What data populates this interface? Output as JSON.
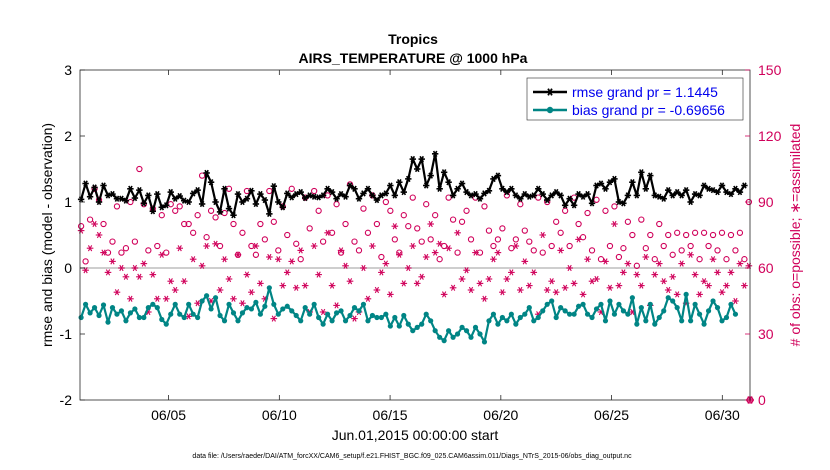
{
  "chart_data": {
    "type": "line",
    "title": "Tropics",
    "subtitle": "AIRS_TEMPERATURE @ 1000 hPa",
    "xlabel": "Jun.01,2015 00:00:00 start",
    "ylabel": "rmse and bias (model - observation)",
    "y2label": "# of obs: o=possible; ∗=assimilated",
    "x_ticks": [
      {
        "day": 5,
        "label": "06/05"
      },
      {
        "day": 10,
        "label": "06/10"
      },
      {
        "day": 15,
        "label": "06/15"
      },
      {
        "day": 20,
        "label": "06/20"
      },
      {
        "day": 25,
        "label": "06/25"
      },
      {
        "day": 30,
        "label": "06/30"
      }
    ],
    "xlim": [
      1,
      31.25
    ],
    "ylim": [
      -2,
      3
    ],
    "y_ticks": [
      "-2",
      "-1",
      "0",
      "1",
      "2",
      "3"
    ],
    "y2lim": [
      0,
      150
    ],
    "y2_ticks": [
      "0",
      "30",
      "60",
      "90",
      "120",
      "150"
    ],
    "footnote": "data file: /Users/raeder/DAI/ATM_forcXX/CAM6_setup/f.e21.FHIST_BGC.f09_025.CAM6assim.011/Diags_NTrS_2015-06/obs_diag_output.nc",
    "legend_position": "top-right",
    "series": [
      {
        "name": "rmse grand pr = 1.1445",
        "axis": "left",
        "color": "#000000",
        "marker": "asterisk",
        "values": [
          1.04,
          1.28,
          1.08,
          1.22,
          1.0,
          1.25,
          1.1,
          1.12,
          1.05,
          1.05,
          1.02,
          1.2,
          1.06,
          1.18,
          0.98,
          1.1,
          0.86,
          1.12,
          0.92,
          0.95,
          1.15,
          1.05,
          1.09,
          1.02,
          1.0,
          1.13,
          1.18,
          0.97,
          1.44,
          1.3,
          1.0,
          0.85,
          1.2,
          0.9,
          0.8,
          1.12,
          1.0,
          1.05,
          1.17,
          0.97,
          1.12,
          1.03,
          0.82,
          1.24,
          1.0,
          0.92,
          1.13,
          1.07,
          1.12,
          1.15,
          1.06,
          1.1,
          1.08,
          1.07,
          1.1,
          1.2,
          1.15,
          1.05,
          1.12,
          1.08,
          1.25,
          1.2,
          1.05,
          1.13,
          1.2,
          1.1,
          1.03,
          1.1,
          1.13,
          1.25,
          1.1,
          1.3,
          1.15,
          1.35,
          1.65,
          1.5,
          1.65,
          1.25,
          1.4,
          1.73,
          1.2,
          1.45,
          1.3,
          1.1,
          1.2,
          1.28,
          1.15,
          1.1,
          1.12,
          1.05,
          1.13,
          1.17,
          1.35,
          1.4,
          1.2,
          1.15,
          1.2,
          1.1,
          1.05,
          1.12,
          1.08,
          1.1,
          1.2,
          1.12,
          1.03,
          1.1,
          1.15,
          1.1,
          0.95,
          1.05,
          0.95,
          1.12,
          1.08,
          1.12,
          0.98,
          1.25,
          1.28,
          1.2,
          1.3,
          1.35,
          1.0,
          0.98,
          1.1,
          1.3,
          1.1,
          1.45,
          1.2,
          1.4,
          1.1,
          1.08,
          1.05,
          1.18,
          1.1,
          1.15,
          1.1,
          1.18,
          1.0,
          1.12,
          1.1,
          1.25,
          1.2,
          1.18,
          1.15,
          1.25,
          1.15,
          1.12,
          1.2,
          1.15,
          1.25
        ]
      },
      {
        "name": "bias grand pr = -0.69656",
        "axis": "left",
        "color": "#008585",
        "marker": "circle-filled",
        "values": [
          -0.75,
          -0.55,
          -0.68,
          -0.6,
          -0.72,
          -0.56,
          -0.82,
          -0.6,
          -0.7,
          -0.65,
          -0.8,
          -0.68,
          -0.62,
          -0.75,
          -0.75,
          -0.6,
          -0.55,
          -0.6,
          -0.78,
          -0.85,
          -0.7,
          -0.55,
          -0.7,
          -0.75,
          -0.55,
          -0.7,
          -0.75,
          -0.5,
          -0.42,
          -0.62,
          -0.45,
          -0.72,
          -0.8,
          -0.55,
          -0.68,
          -0.8,
          -0.68,
          -0.6,
          -0.62,
          -0.52,
          -0.7,
          -0.58,
          -0.3,
          -0.55,
          -0.7,
          -0.62,
          -0.58,
          -0.65,
          -0.72,
          -0.8,
          -0.6,
          -0.7,
          -0.55,
          -0.75,
          -0.85,
          -0.7,
          -0.8,
          -0.68,
          -0.65,
          -0.8,
          -0.72,
          -0.6,
          -0.65,
          -0.55,
          -0.8,
          -0.72,
          -0.75,
          -0.75,
          -0.7,
          -0.88,
          -0.75,
          -0.88,
          -0.72,
          -0.85,
          -0.95,
          -0.9,
          -0.85,
          -0.7,
          -0.8,
          -0.95,
          -1.05,
          -1.1,
          -0.95,
          -1.05,
          -1.0,
          -0.9,
          -0.95,
          -1.05,
          -0.9,
          -1.0,
          -1.12,
          -0.8,
          -0.7,
          -0.85,
          -0.75,
          -0.8,
          -0.7,
          -0.85,
          -0.75,
          -0.7,
          -0.6,
          -0.8,
          -0.75,
          -0.65,
          -0.55,
          -0.5,
          -0.75,
          -0.6,
          -0.65,
          -0.7,
          -0.7,
          -0.58,
          -0.55,
          -0.7,
          -0.75,
          -0.62,
          -0.55,
          -0.8,
          -0.5,
          -0.7,
          -0.55,
          -0.65,
          -0.7,
          -0.45,
          -0.85,
          -0.6,
          -0.8,
          -0.55,
          -0.85,
          -0.75,
          -0.65,
          -0.45,
          -0.5,
          -0.6,
          -0.8,
          -0.4,
          -0.8,
          -0.55,
          -0.7,
          -0.85,
          -0.65,
          -0.5,
          -0.6,
          -0.8,
          -0.75,
          -0.55,
          -0.7
        ]
      },
      {
        "name": "possible",
        "axis": "right",
        "color": "#d0005a",
        "marker": "circle-open",
        "values": [
          79,
          63,
          82,
          96,
          91,
          80,
          67,
          72,
          88,
          67,
          69,
          90,
          72,
          105,
          89,
          68,
          87,
          70,
          84,
          67,
          89,
          86,
          88,
          80,
          80,
          76,
          84,
          102,
          74,
          86,
          83,
          70,
          85,
          96,
          80,
          66,
          76,
          95,
          70,
          66,
          80,
          73,
          95,
          81,
          68,
          88,
          75,
          96,
          71,
          64,
          92,
          78,
          95,
          86,
          72,
          93,
          76,
          89,
          67,
          80,
          98,
          72,
          68,
          87,
          76,
          93,
          80,
          65,
          90,
          86,
          73,
          67,
          84,
          79,
          92,
          78,
          72,
          89,
          73,
          84,
          64,
          70,
          92,
          82,
          67,
          81,
          86,
          73,
          92,
          67,
          88,
          77,
          70,
          73,
          78,
          93,
          69,
          73,
          89,
          77,
          72,
          68,
          92,
          67,
          90,
          70,
          81,
          76,
          86,
          70,
          92,
          80,
          74,
          85,
          68,
          91,
          64,
          86,
          70,
          88,
          65,
          69,
          81,
          75,
          61,
          82,
          69,
          75,
          64,
          80,
          70,
          75,
          66,
          76,
          68,
          75,
          70,
          76,
          64,
          76,
          70,
          75,
          68,
          76,
          64,
          75,
          68,
          76,
          64,
          90
        ]
      },
      {
        "name": "assimilated",
        "axis": "right",
        "color": "#d0005a",
        "marker": "asterisk",
        "values": [
          77,
          59,
          69,
          80,
          75,
          67,
          58,
          63,
          49,
          60,
          56,
          46,
          60,
          56,
          62,
          40,
          57,
          46,
          66,
          46,
          54,
          50,
          69,
          54,
          38,
          64,
          44,
          61,
          70,
          45,
          71,
          50,
          64,
          55,
          46,
          66,
          44,
          57,
          49,
          70,
          53,
          46,
          65,
          37,
          64,
          52,
          58,
          63,
          51,
          68,
          52,
          40,
          70,
          57,
          40,
          76,
          52,
          43,
          68,
          61,
          54,
          37,
          40,
          60,
          46,
          70,
          50,
          58,
          62,
          48,
          79,
          66,
          53,
          60,
          70,
          53,
          56,
          65,
          80,
          67,
          71,
          48,
          69,
          51,
          76,
          55,
          59,
          50,
          67,
          53,
          46,
          55,
          64,
          67,
          49,
          55,
          58,
          70,
          50,
          63,
          52,
          58,
          39,
          75,
          50,
          54,
          49,
          68,
          51,
          60,
          53,
          73,
          48,
          64,
          54,
          55,
          40,
          63,
          51,
          80,
          52,
          58,
          62,
          40,
          57,
          52,
          65,
          43,
          57,
          62,
          54,
          50,
          56,
          48,
          62,
          44,
          66,
          57,
          48,
          54,
          52,
          64,
          58,
          49,
          52,
          58,
          45,
          62,
          52,
          61
        ]
      }
    ]
  }
}
